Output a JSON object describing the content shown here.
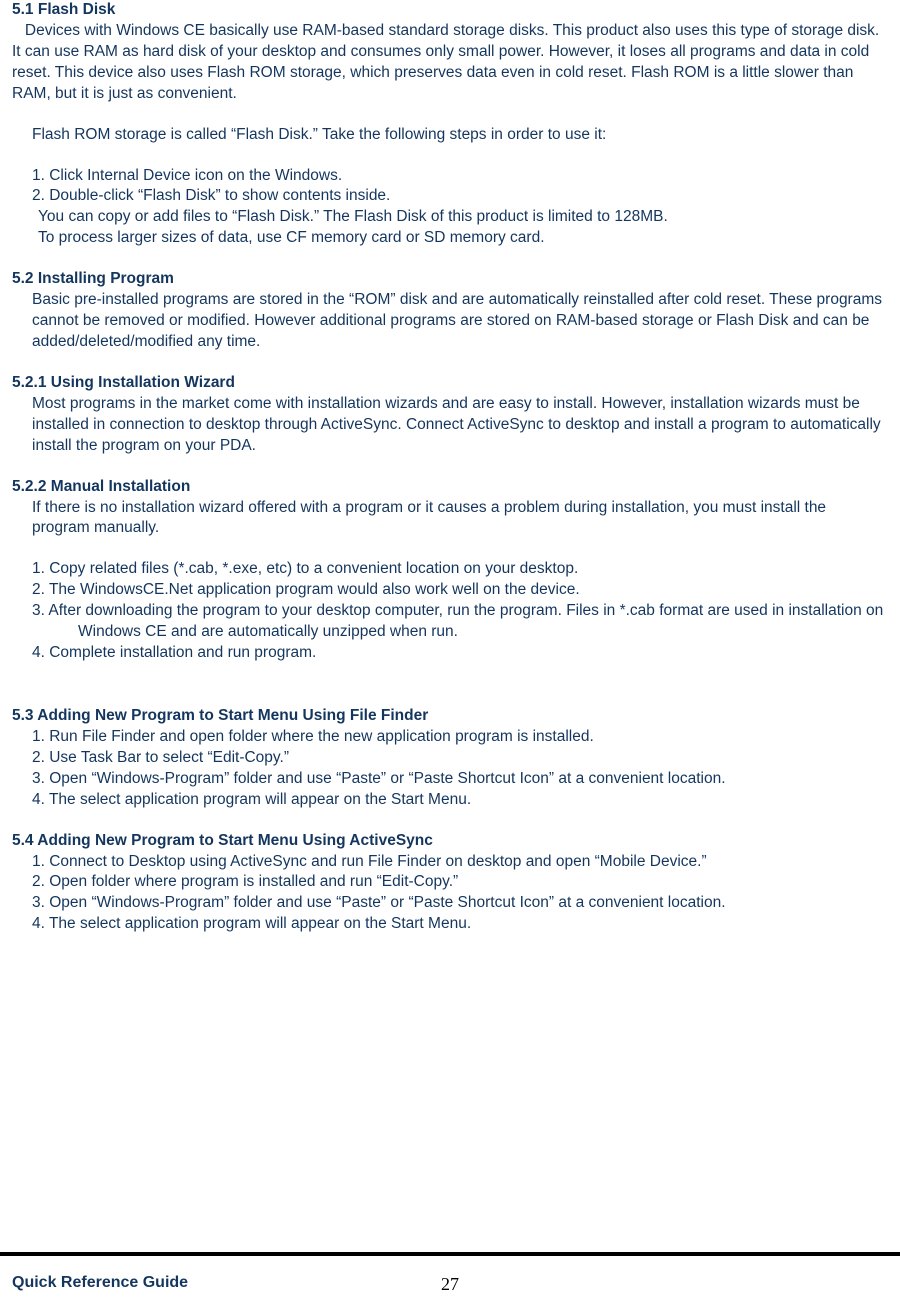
{
  "colors": {
    "text": "#14365e",
    "rule": "#000000",
    "background": "#ffffff"
  },
  "typography": {
    "body_family": "Verdana, Geneva, sans-serif",
    "body_size_pt": 12,
    "line_height": 1.35,
    "heading_weight": "bold",
    "pagenum_family": "Times New Roman, serif"
  },
  "sections": {
    "s51_title": "5.1 Flash Disk",
    "s51_p1": "Devices with Windows CE basically use RAM-based standard storage disks.   This product also uses this type of storage disk.   It can use RAM as hard disk of your desktop and consumes only small power.   However, it loses all programs and data in cold reset.   This device also uses Flash ROM storage, which preserves data even in cold reset.   Flash ROM is a little slower than RAM, but it is just as convenient.",
    "s51_p2": "Flash ROM storage is called “Flash Disk.”   Take the following steps in order to use it:",
    "s51_l1": "1. Click Internal Device icon on the Windows.",
    "s51_l2": "2. Double-click “Flash Disk” to show contents inside.",
    "s51_n1": "You can copy or add files to “Flash Disk.”   The Flash Disk of this product is limited to 128MB.",
    "s51_n2": "To process larger sizes of data, use CF memory card or SD memory card.",
    "s52_title": "5.2 Installing Program",
    "s52_p1": "Basic pre-installed programs are stored in the “ROM” disk and are automatically reinstalled after cold reset.   These programs cannot be removed or modified.   However additional programs are stored on RAM-based storage or Flash Disk and can be added/deleted/modified any time.",
    "s521_title": "5.2.1 Using Installation Wizard",
    "s521_p1": "Most programs in the market come with installation wizards and are easy to install.   However, installation wizards must be installed in connection to desktop through ActiveSync.   Connect ActiveSync to desktop and install a program to automatically install the program on your PDA.",
    "s522_title": "5.2.2 Manual Installation",
    "s522_p1": "If there is no installation wizard offered with a program or it causes a problem during installation, you must install the program manually.",
    "s522_l1": "1. Copy related files (*.cab, *.exe, etc) to a convenient location on your desktop.",
    "s522_l2": "2. The WindowsCE.Net application program would also work well on the device.",
    "s522_l3": "3. After downloading the program to your desktop computer, run the program.   Files in *.cab format are used in installation on Windows CE and are automatically unzipped when run.",
    "s522_l4": "4. Complete installation and run program.",
    "s53_title": "5.3 Adding New Program to Start Menu Using File Finder",
    "s53_l1": "1. Run File Finder and open folder where the new application program is installed.",
    "s53_l2": "2. Use Task Bar to select “Edit-Copy.”",
    "s53_l3": "3. Open “Windows-Program” folder and use “Paste” or “Paste Shortcut Icon” at a convenient location.",
    "s53_l4": "4. The select application program will appear on the Start Menu.",
    "s54_title": "5.4 Adding New Program to Start Menu Using ActiveSync",
    "s54_l1": "1. Connect to Desktop using ActiveSync and run File Finder on desktop and open “Mobile Device.”",
    "s54_l2": "2. Open folder where program is installed and run “Edit-Copy.”",
    "s54_l3": "3. Open “Windows-Program” folder and use “Paste” or “Paste Shortcut Icon” at a convenient location.",
    "s54_l4": "4. The select application program will appear on the Start Menu."
  },
  "footer": {
    "title": "Quick Reference Guide",
    "page": "27"
  }
}
